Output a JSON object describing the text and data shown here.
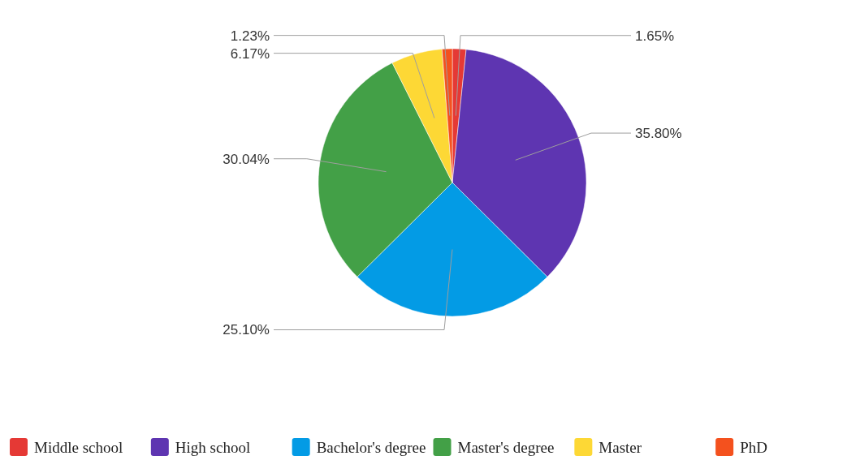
{
  "chart_data": {
    "type": "pie",
    "categories": [
      "Middle school",
      "High school",
      "Bachelor's degree",
      "Master's degree",
      "Master",
      "PhD"
    ],
    "values": [
      1.65,
      35.8,
      25.1,
      30.04,
      6.17,
      1.23
    ],
    "colors": [
      "#e53935",
      "#5e35b1",
      "#039be5",
      "#43a047",
      "#fdd835",
      "#f4511e"
    ],
    "value_labels": [
      "1.65%",
      "35.80%",
      "25.10%",
      "30.04%",
      "6.17%",
      "1.23%"
    ],
    "legend": "bottom"
  }
}
